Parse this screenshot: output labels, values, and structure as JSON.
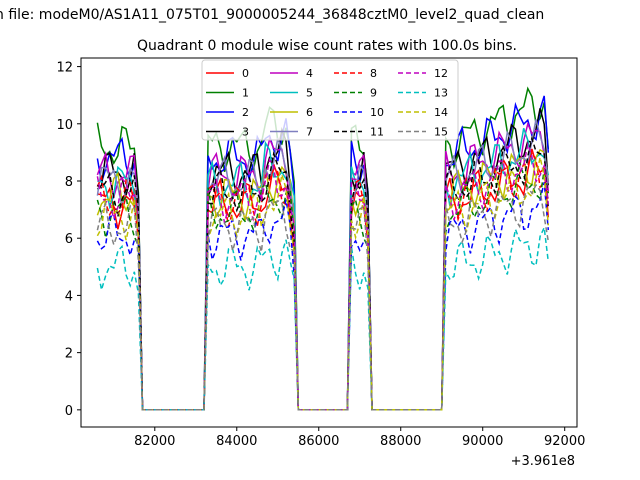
{
  "suptitle": "n file: modeM0/AS1A11_075T01_9000005244_36848cztM0_level2_quad_clean",
  "chart_data": {
    "type": "line",
    "title": "Quadrant 0 module wise count rates with 100.0s bins.",
    "xlabel": "",
    "ylabel": "",
    "x_offset_label": "+3.961e8",
    "xlim": [
      80200,
      92300
    ],
    "ylim": [
      -0.6,
      12.3
    ],
    "x_ticks": [
      82000,
      84000,
      86000,
      88000,
      90000,
      92000
    ],
    "x_tick_labels": [
      "82000",
      "84000",
      "86000",
      "88000",
      "90000",
      "92000"
    ],
    "y_ticks": [
      0,
      2,
      4,
      6,
      8,
      10,
      12
    ],
    "y_tick_labels": [
      "0",
      "2",
      "4",
      "6",
      "8",
      "10",
      "12"
    ],
    "grid": false,
    "legend": {
      "placement": "upper-center",
      "columns": 4
    },
    "segments": [
      {
        "start": 80600,
        "end": 81600
      },
      {
        "start": 83300,
        "end": 85400
      },
      {
        "start": 86800,
        "end": 87200
      },
      {
        "start": 89100,
        "end": 91600
      }
    ],
    "series": [
      {
        "name": "0",
        "color": "#ff0000",
        "dash": "solid",
        "base": 7.2
      },
      {
        "name": "1",
        "color": "#008000",
        "dash": "solid",
        "base": 9.2
      },
      {
        "name": "2",
        "color": "#0000ff",
        "dash": "solid",
        "base": 8.8
      },
      {
        "name": "3",
        "color": "#000000",
        "dash": "solid",
        "base": 8.3
      },
      {
        "name": "4",
        "color": "#bf00bf",
        "dash": "solid",
        "base": 8.2
      },
      {
        "name": "5",
        "color": "#00bfbf",
        "dash": "solid",
        "base": 7.9
      },
      {
        "name": "6",
        "color": "#bfbf00",
        "dash": "solid",
        "base": 7.5
      },
      {
        "name": "7",
        "color": "#7f7fbf",
        "dash": "solid",
        "base": 8.0
      },
      {
        "name": "8",
        "color": "#ff0000",
        "dash": "dashed",
        "base": 7.3
      },
      {
        "name": "9",
        "color": "#008000",
        "dash": "dashed",
        "base": 6.9
      },
      {
        "name": "10",
        "color": "#0000ff",
        "dash": "dashed",
        "base": 6.1
      },
      {
        "name": "11",
        "color": "#000000",
        "dash": "dashed",
        "base": 7.6
      },
      {
        "name": "12",
        "color": "#bf00bf",
        "dash": "dashed",
        "base": 7.4
      },
      {
        "name": "13",
        "color": "#00bfbf",
        "dash": "dashed",
        "base": 5.0
      },
      {
        "name": "14",
        "color": "#bfbf00",
        "dash": "dashed",
        "base": 6.8
      },
      {
        "name": "15",
        "color": "#808080",
        "dash": "dashed",
        "base": 6.4
      }
    ]
  }
}
